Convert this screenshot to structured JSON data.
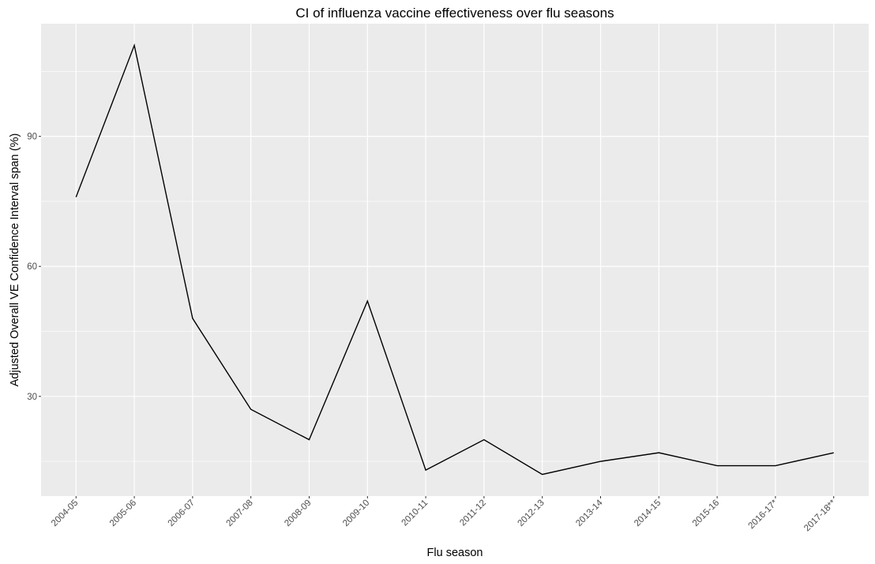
{
  "chart_data": {
    "type": "line",
    "title": "CI of influenza vaccine effectiveness over flu seasons",
    "xlabel": "Flu season",
    "ylabel": "Adjusted Overall VE Confidence Interval span (%)",
    "categories": [
      "2004-05",
      "2005-06",
      "2006-07",
      "2007-08",
      "2008-09",
      "2009-10",
      "2010-11",
      "2011-12",
      "2012-13",
      "2013-14",
      "2014-15",
      "2015-16",
      "2016-17*",
      "2017-18**"
    ],
    "values": [
      76,
      111,
      48,
      27,
      20,
      52,
      13,
      20,
      12,
      15,
      17,
      14,
      14,
      17
    ],
    "ylim": [
      7,
      116
    ],
    "yticks": [
      30,
      60,
      90
    ],
    "yticks_minor": [
      15,
      45,
      75,
      105
    ],
    "grid": true,
    "line_color": "#000000",
    "panel_color": "#ebebeb",
    "grid_color": "#ffffff"
  }
}
